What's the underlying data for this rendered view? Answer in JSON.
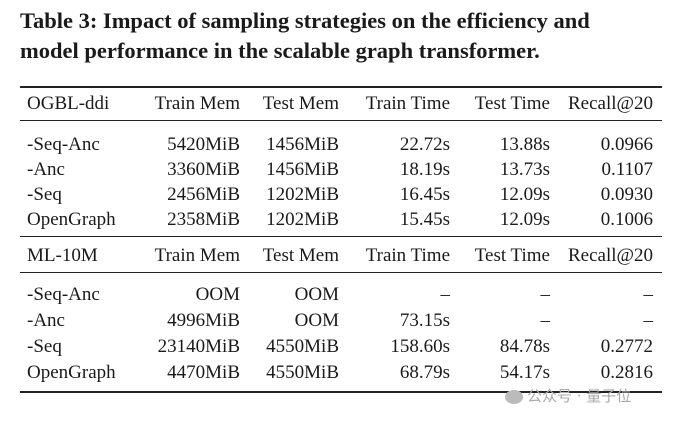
{
  "title_line1": "Table 3: Impact of sampling strategies on the efficiency and",
  "title_line2": "model performance in the scalable graph transformer.",
  "sections": [
    {
      "header": [
        "OGBL-ddi",
        "Train Mem",
        "Test Mem",
        "Train Time",
        "Test Time",
        "Recall@20"
      ],
      "rows": [
        [
          "-Seq-Anc",
          "5420MiB",
          "1456MiB",
          "22.72s",
          "13.88s",
          "0.0966"
        ],
        [
          "-Anc",
          "3360MiB",
          "1456MiB",
          "18.19s",
          "13.73s",
          "0.1107"
        ],
        [
          "-Seq",
          "2456MiB",
          "1202MiB",
          "16.45s",
          "12.09s",
          "0.0930"
        ],
        [
          "OpenGraph",
          "2358MiB",
          "1202MiB",
          "15.45s",
          "12.09s",
          "0.1006"
        ]
      ]
    },
    {
      "header": [
        "ML-10M",
        "Train Mem",
        "Test Mem",
        "Train Time",
        "Test Time",
        "Recall@20"
      ],
      "rows": [
        [
          "-Seq-Anc",
          "OOM",
          "OOM",
          "–",
          "–",
          "–"
        ],
        [
          "-Anc",
          "4996MiB",
          "OOM",
          "73.15s",
          "–",
          "–"
        ],
        [
          "-Seq",
          "23140MiB",
          "4550MiB",
          "158.60s",
          "84.78s",
          "0.2772"
        ],
        [
          "OpenGraph",
          "4470MiB",
          "4550MiB",
          "68.79s",
          "54.17s",
          "0.2816"
        ]
      ]
    }
  ],
  "watermark": "公众号 · 量子位"
}
